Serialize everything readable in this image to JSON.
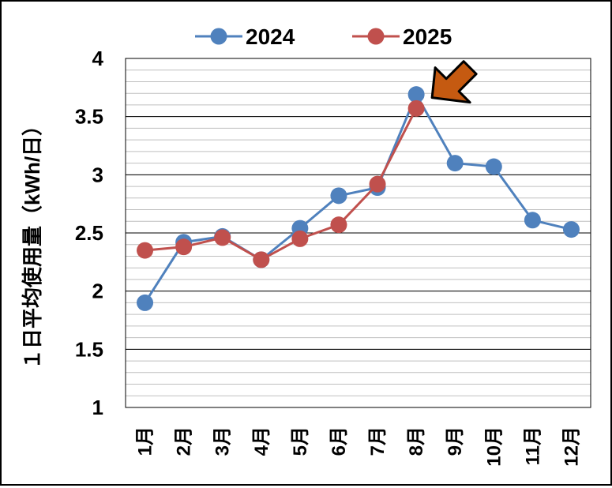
{
  "chart_data": {
    "type": "line",
    "title": "",
    "xlabel": "",
    "ylabel": "１日平均使用量（kWh/日）",
    "categories": [
      "1月",
      "2月",
      "3月",
      "4月",
      "5月",
      "6月",
      "7月",
      "8月",
      "9月",
      "10月",
      "11月",
      "12月"
    ],
    "ylim": [
      1,
      4
    ],
    "yticks": [
      1,
      1.5,
      2,
      2.5,
      3,
      3.5,
      4
    ],
    "ytick_labels": [
      "1",
      "1.5",
      "2",
      "2.5",
      "3",
      "3.5",
      "4"
    ],
    "major_grid": true,
    "minor_grid": true,
    "legend": "top-center",
    "series": [
      {
        "name": "2024",
        "color": "#4f81bd",
        "values": [
          1.9,
          2.42,
          2.47,
          2.27,
          2.54,
          2.82,
          2.89,
          3.69,
          3.1,
          3.07,
          2.61,
          2.53
        ]
      },
      {
        "name": "2025",
        "color": "#c0504d",
        "values": [
          2.35,
          2.38,
          2.46,
          2.27,
          2.45,
          2.57,
          2.92,
          3.57,
          null,
          null,
          null,
          null
        ]
      }
    ],
    "annotation": {
      "type": "arrow-icon",
      "target_category": "8月",
      "color": "#c55a11"
    }
  }
}
